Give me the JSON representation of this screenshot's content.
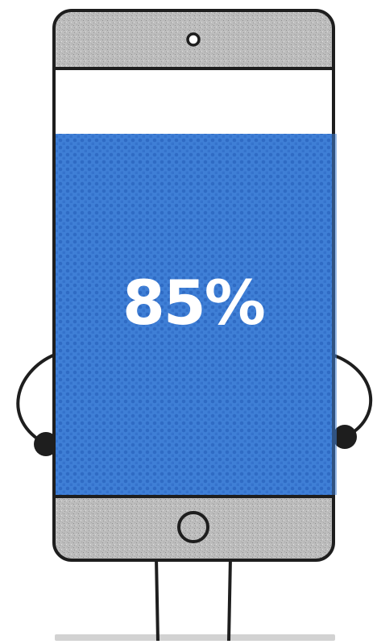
{
  "battery": {
    "level_percent": 85,
    "label": "85%",
    "fill_color": "#3f7fd6",
    "fill_dot_color": "#2f6bc4"
  },
  "phone": {
    "body_color": "#bdbdbd",
    "outline_color": "#1e1e1e",
    "screen_color": "#ffffff"
  },
  "ground": {
    "color": "#d2d2d2"
  },
  "icons": {
    "camera": "front-camera-icon",
    "home": "home-button-icon"
  }
}
